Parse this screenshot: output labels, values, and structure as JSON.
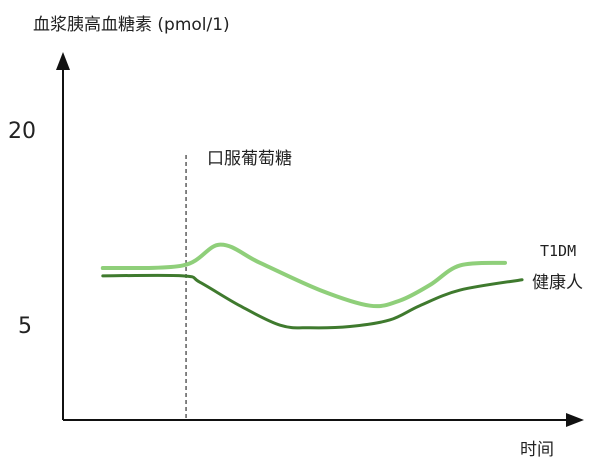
{
  "chart_data": {
    "type": "line",
    "ylabel": "血浆胰高血糖素 (pmol/1)",
    "xlabel": "时间",
    "yticks": [
      20,
      5
    ],
    "ylim": [
      -2.3,
      25.8
    ],
    "xlim": [
      0,
      100
    ],
    "grid": false,
    "annotation": {
      "label": "口服葡萄糖",
      "x": 23.8
    },
    "series": [
      {
        "name": "T1DM",
        "color": "#8fcf7a",
        "x": [
          7.7,
          23.2,
          30.4,
          38.1,
          49.7,
          59.4,
          65.2,
          71,
          76.8,
          85.5
        ],
        "y": [
          9.4,
          9.6,
          11.2,
          9.8,
          7.7,
          6.5,
          6.9,
          8.1,
          9.6,
          9.8
        ]
      },
      {
        "name": "健康人",
        "color": "#3f7a2e",
        "x": [
          7.7,
          23.2,
          26.5,
          34.2,
          42,
          47.8,
          55.5,
          63.2,
          69,
          76.8,
          88.8
        ],
        "y": [
          8.8,
          8.8,
          8.3,
          6.5,
          5.0,
          4.8,
          4.9,
          5.4,
          6.5,
          7.7,
          8.5
        ]
      }
    ]
  }
}
